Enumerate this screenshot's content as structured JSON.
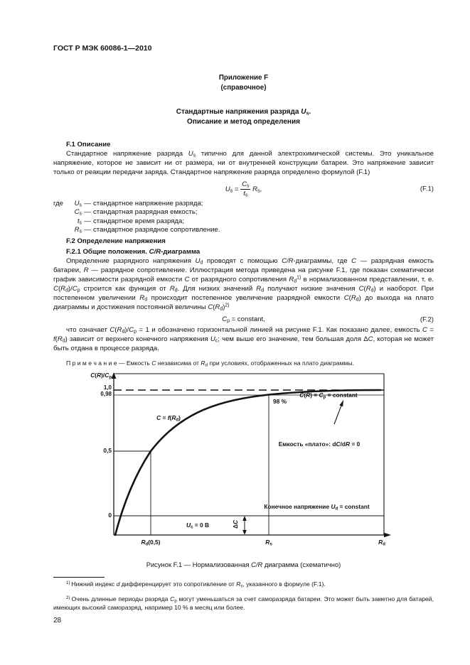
{
  "header": {
    "doc_code": "ГОСТ Р МЭК 60086-1—2010",
    "page_number": "28"
  },
  "annex": {
    "label": "Приложение F",
    "kind": "(справочное)"
  },
  "title": {
    "line1": [
      {
        "t": "Стандартные напряжения разряда "
      },
      {
        "t": "U",
        "s": "i"
      },
      {
        "t": "s",
        "s": "sub"
      },
      {
        "t": "."
      }
    ],
    "line2": "Описание и метод определения"
  },
  "body": {
    "f1_heading": "F.1 Описание",
    "p1": [
      {
        "t": "Стандартное напряжение разряда "
      },
      {
        "t": "U",
        "s": "i"
      },
      {
        "t": "s",
        "s": "sub"
      },
      {
        "t": " типично для данной электрохимической системы. Это уникальное напряжение, которое не зависит ни от размера, ни от внутренней конструкции батареи. Это напряжение зависит только от реакции передачи заряда. Стандартное напряжение разряда определено формулой (F.1)"
      }
    ],
    "where": {
      "items": [
        {
          "intro": "где",
          "term": [
            {
              "t": "U",
              "s": "i"
            },
            {
              "t": "s",
              "s": "sub"
            }
          ],
          "dash": "—",
          "def": "стандартное напряжение разряда;"
        },
        {
          "intro": "",
          "term": [
            {
              "t": "C",
              "s": "i"
            },
            {
              "t": "s",
              "s": "sub"
            }
          ],
          "dash": "—",
          "def": "стандартная разрядная емкость;"
        },
        {
          "intro": "",
          "term": [
            {
              "t": "t",
              "s": "i"
            },
            {
              "t": "s",
              "s": "sub"
            }
          ],
          "dash": "—",
          "def": "стандартное время разряда;"
        },
        {
          "intro": "",
          "term": [
            {
              "t": "R",
              "s": "i"
            },
            {
              "t": "s",
              "s": "sub"
            }
          ],
          "dash": "—",
          "def": "стандартное разрядное сопротивление."
        }
      ]
    },
    "f2_heading": "F.2 Определение напряжения",
    "f21_heading": [
      {
        "t": "F.2.1 Общие положения. "
      },
      {
        "t": "C/R",
        "s": "i"
      },
      {
        "t": "-диаграмма"
      }
    ],
    "p2": [
      {
        "t": "Определение разрядного напряжения "
      },
      {
        "t": "U",
        "s": "i"
      },
      {
        "t": "d",
        "s": "sub"
      },
      {
        "t": " проводят с помощью "
      },
      {
        "t": "C/R",
        "s": "i"
      },
      {
        "t": "-диаграммы, где "
      },
      {
        "t": "C",
        "s": "i"
      },
      {
        "t": " — разрядная емкость батареи, "
      },
      {
        "t": "R",
        "s": "i"
      },
      {
        "t": " — разрядное сопротивление. Иллюстрация метода приведена на рисунке F.1, где показан схематически график зависимости разрядной емкости "
      },
      {
        "t": "C",
        "s": "i"
      },
      {
        "t": " от разрядного сопротивления "
      },
      {
        "t": "R",
        "s": "i"
      },
      {
        "t": "d",
        "s": "sub"
      },
      {
        "t": "1)",
        "s": "sup"
      },
      {
        "t": " в нормализованном представлении, т. е. "
      },
      {
        "t": "C",
        "s": "i"
      },
      {
        "t": "("
      },
      {
        "t": "R",
        "s": "i"
      },
      {
        "t": "d",
        "s": "sub"
      },
      {
        "t": ")/"
      },
      {
        "t": "C",
        "s": "i"
      },
      {
        "t": "p",
        "s": "sub"
      },
      {
        "t": " строится как функция от "
      },
      {
        "t": "R",
        "s": "i"
      },
      {
        "t": "d",
        "s": "sub"
      },
      {
        "t": ". Для низких значений "
      },
      {
        "t": "R",
        "s": "i"
      },
      {
        "t": "d",
        "s": "sub"
      },
      {
        "t": " получают низкие значения "
      },
      {
        "t": "C",
        "s": "i"
      },
      {
        "t": "("
      },
      {
        "t": "R",
        "s": "i"
      },
      {
        "t": "d",
        "s": "sub"
      },
      {
        "t": ")"
      },
      {
        "t": " и наоборот. При постепенном увеличении "
      },
      {
        "t": "R",
        "s": "i"
      },
      {
        "t": "d",
        "s": "sub"
      },
      {
        "t": " происходит постепенное увеличение разрядной емкости "
      },
      {
        "t": "C",
        "s": "i"
      },
      {
        "t": "("
      },
      {
        "t": "R",
        "s": "i"
      },
      {
        "t": "d",
        "s": "sub"
      },
      {
        "t": ")"
      },
      {
        "t": " до выхода на плато диаграммы и достижения постоянной величины "
      },
      {
        "t": "C",
        "s": "i"
      },
      {
        "t": "("
      },
      {
        "t": "R",
        "s": "i"
      },
      {
        "t": "d",
        "s": "sub"
      },
      {
        "t": ")"
      },
      {
        "t": "2)",
        "s": "sup"
      }
    ],
    "p3": [
      {
        "t": "что означает "
      },
      {
        "t": "C",
        "s": "i"
      },
      {
        "t": "("
      },
      {
        "t": "R",
        "s": "i"
      },
      {
        "t": "d",
        "s": "sub"
      },
      {
        "t": ")/"
      },
      {
        "t": "C",
        "s": "i"
      },
      {
        "t": "p",
        "s": "sub"
      },
      {
        "t": " = 1 и обозначено горизонтальной линией на рисунке F.1. Как показано далее, емкость "
      },
      {
        "t": "C",
        "s": "i"
      },
      {
        "t": " = "
      },
      {
        "t": "f",
        "s": "i"
      },
      {
        "t": "("
      },
      {
        "t": "R",
        "s": "i"
      },
      {
        "t": "d",
        "s": "sub"
      },
      {
        "t": ") зависит от верхнего конечного напряжения "
      },
      {
        "t": "U",
        "s": "i"
      },
      {
        "t": "c",
        "s": "sub"
      },
      {
        "t": "; чем выше его значение, тем большая доля Δ"
      },
      {
        "t": "C",
        "s": "i"
      },
      {
        "t": ", которая не может быть отдана в процессе разряда."
      }
    ],
    "note": [
      {
        "t": "П р и м е ч а н и е — Емкость "
      },
      {
        "t": "C",
        "s": "i"
      },
      {
        "t": " независима от "
      },
      {
        "t": "R",
        "s": "i"
      },
      {
        "t": "d",
        "s": "sub"
      },
      {
        "t": " при условиях, отображенных на плато диаграммы."
      }
    ]
  },
  "formulas": {
    "f1": {
      "lhs": [
        {
          "t": "U",
          "s": "i"
        },
        {
          "t": "s",
          "s": "sub"
        },
        {
          "t": " = "
        }
      ],
      "num": [
        {
          "t": "C",
          "s": "i"
        },
        {
          "t": "s",
          "s": "sub"
        }
      ],
      "den": [
        {
          "t": "t",
          "s": "i"
        },
        {
          "t": "s",
          "s": "sub"
        }
      ],
      "rhs": [
        {
          "t": " "
        },
        {
          "t": "R",
          "s": "i"
        },
        {
          "t": "s",
          "s": "sub"
        },
        {
          "t": ","
        }
      ],
      "tag": "(F.1)"
    },
    "f2": {
      "body": [
        {
          "t": "C",
          "s": "i"
        },
        {
          "t": "p",
          "s": "sub"
        },
        {
          "t": " = constant,"
        }
      ],
      "tag": "(F.2)"
    }
  },
  "figure": {
    "caption": [
      {
        "t": "Рисунок F.1 — Нормализованная "
      },
      {
        "t": "C/R",
        "s": "i"
      },
      {
        "t": " диаграмма (схематично)"
      }
    ],
    "y_axis_title": [
      {
        "t": "C",
        "s": "i"
      },
      {
        "t": "("
      },
      {
        "t": "R",
        "s": "i"
      },
      {
        "t": ")/"
      },
      {
        "t": "C",
        "s": "i"
      },
      {
        "t": "p",
        "s": "sub"
      }
    ],
    "ticks": {
      "y_1": "1,0",
      "y_098": "0,98",
      "y_05": "0,5",
      "y_0": "0"
    },
    "labels": {
      "curve": [
        {
          "t": "C",
          "s": "i"
        },
        {
          "t": " = "
        },
        {
          "t": "f",
          "s": "i"
        },
        {
          "t": "("
        },
        {
          "t": "R",
          "s": "i"
        },
        {
          "t": "d",
          "s": "sub"
        },
        {
          "t": ")"
        }
      ],
      "pct": "98 %",
      "plateau_eq": [
        {
          "t": "C",
          "s": "i"
        },
        {
          "t": "("
        },
        {
          "t": "R",
          "s": "i"
        },
        {
          "t": ") = "
        },
        {
          "t": "C",
          "s": "i"
        },
        {
          "t": "p",
          "s": "sub"
        },
        {
          "t": " = constant"
        }
      ],
      "plateau_note": [
        {
          "t": "Емкость «плато»: d"
        },
        {
          "t": "C",
          "s": "i"
        },
        {
          "t": "/d"
        },
        {
          "t": "R",
          "s": "i"
        },
        {
          "t": " = 0"
        }
      ],
      "end_voltage": [
        {
          "t": "Конечное напряжение "
        },
        {
          "t": "U",
          "s": "i"
        },
        {
          "t": "d",
          "s": "sub"
        },
        {
          "t": " = constant"
        }
      ],
      "uc": [
        {
          "t": "U",
          "s": "i"
        },
        {
          "t": "c",
          "s": "sub"
        },
        {
          "t": " = 0 В"
        }
      ],
      "delta_c": [
        {
          "t": "Δ"
        },
        {
          "t": "C",
          "s": "i"
        }
      ],
      "x_rd05": [
        {
          "t": "R",
          "s": "i"
        },
        {
          "t": "d",
          "s": "sub"
        },
        {
          "t": "(0,5)"
        }
      ],
      "x_rs": [
        {
          "t": "R",
          "s": "i"
        },
        {
          "t": "s",
          "s": "sub"
        }
      ],
      "x_axis": [
        {
          "t": "R",
          "s": "i"
        },
        {
          "t": "d",
          "s": "sub"
        }
      ]
    }
  },
  "footnotes": {
    "fn1": [
      {
        "t": "1) ",
        "s": "sup"
      },
      {
        "t": "Нижний индекс "
      },
      {
        "t": "d",
        "s": "i"
      },
      {
        "t": " дифференцирует это сопротивление от "
      },
      {
        "t": "R",
        "s": "i"
      },
      {
        "t": "s",
        "s": "sub"
      },
      {
        "t": ", указанного в формуле (F.1)."
      }
    ],
    "fn2": [
      {
        "t": "2) ",
        "s": "sup"
      },
      {
        "t": "Очень длинные периоды разряда "
      },
      {
        "t": "C",
        "s": "i"
      },
      {
        "t": "p",
        "s": "sub"
      },
      {
        "t": " могут уменьшаться за счет саморазряда батареи. Это может быть заметно для батарей, имеющих высокий саморазряд, например 10 % в месяц или более."
      }
    ]
  },
  "chart_data": {
    "type": "line",
    "title": "Рисунок F.1 — Нормализованная C/R диаграмма (схематично)",
    "xlabel": "Rd",
    "ylabel": "C(R)/Cp",
    "x_ticks": [
      "Rd(0,5)",
      "Rs"
    ],
    "y_ticks": [
      "0",
      "0,5",
      "0,98",
      "1,0"
    ],
    "series": [
      {
        "name": "C = f(Rd)",
        "description": "схематичная монотонно возрастающая кривая, асимптотически приближающаяся к плато C(R)/Cp = 1",
        "x": [
          "0",
          "Rd(0,5)",
          "Rs",
          "max"
        ],
        "y": [
          -0.15,
          0.5,
          0.98,
          1.0
        ]
      }
    ],
    "reference_lines": [
      {
        "y": 1.0,
        "style": "dashed",
        "label": "C(R) = Cp = constant"
      },
      {
        "y": 0.98,
        "style": "solid"
      },
      {
        "y": 0,
        "style": "solid"
      }
    ],
    "annotations": [
      "98 %",
      "Емкость «плато»: dC/dR = 0",
      "Конечное напряжение Ud = constant",
      "Uc = 0 В",
      "ΔC"
    ],
    "grid": false,
    "legend": false
  }
}
